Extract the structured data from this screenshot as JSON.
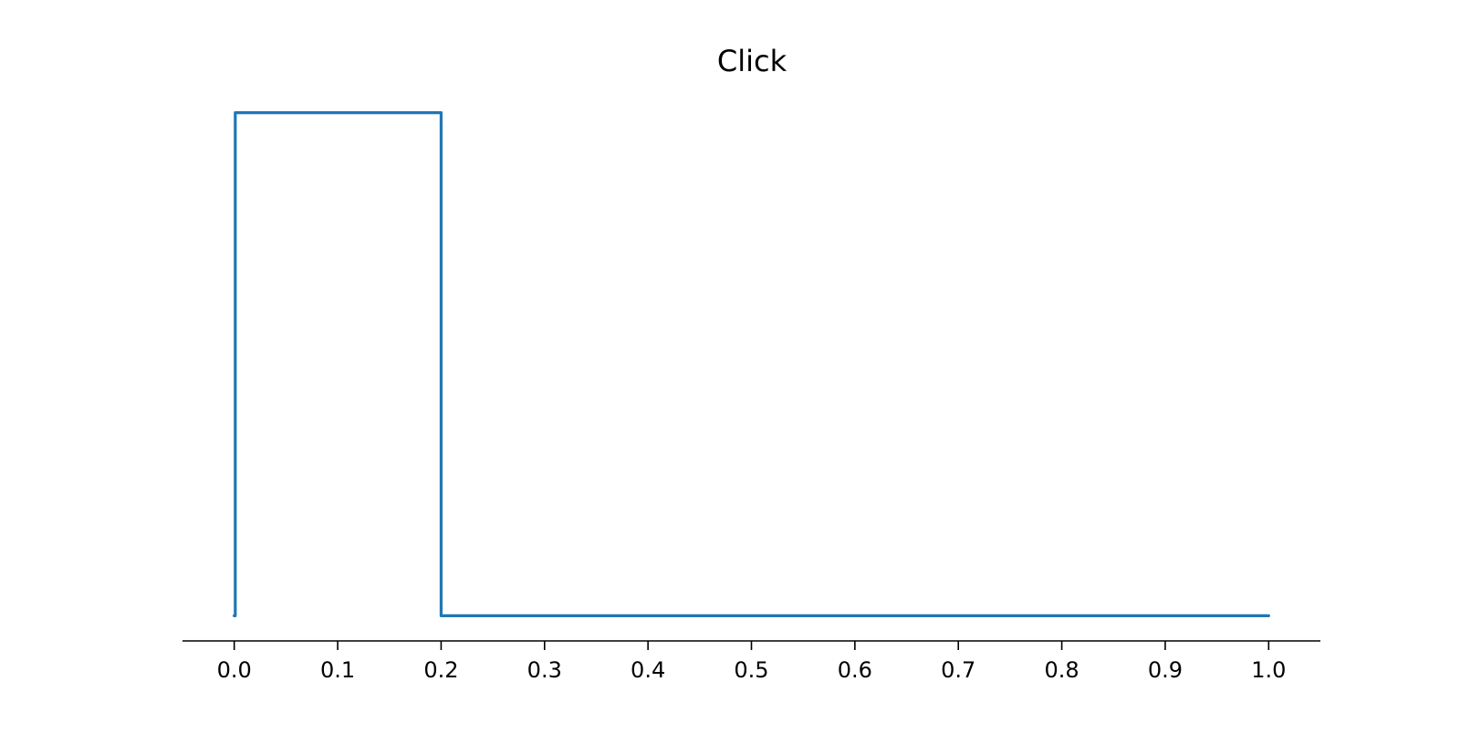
{
  "chart_data": {
    "type": "line",
    "title": "Click",
    "xlabel": "",
    "ylabel": "",
    "xlim": [
      -0.05,
      1.05
    ],
    "ylim": [
      -0.05,
      1.05
    ],
    "xticks": [
      0.0,
      0.1,
      0.2,
      0.3,
      0.4,
      0.5,
      0.6,
      0.7,
      0.8,
      0.9,
      1.0
    ],
    "xtick_labels": [
      "0.0",
      "0.1",
      "0.2",
      "0.3",
      "0.4",
      "0.5",
      "0.6",
      "0.7",
      "0.8",
      "0.9",
      "1.0"
    ],
    "show_y_axis": false,
    "grid": false,
    "legend": "none",
    "series": [
      {
        "color": "#1f77b4",
        "x": [
          0.0,
          0.001,
          0.001,
          0.2,
          0.2,
          1.0
        ],
        "y": [
          0.0,
          0.0,
          1.0,
          1.0,
          0.0,
          0.0
        ]
      }
    ]
  }
}
